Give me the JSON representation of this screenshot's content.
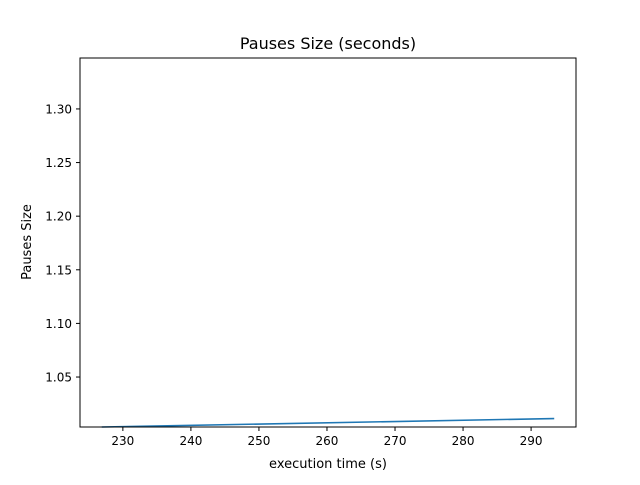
{
  "chart_data": {
    "type": "line",
    "title": "Pauses Size (seconds)",
    "xlabel": "execution time (s)",
    "ylabel": "Pauses Size",
    "xlim": [
      223.7,
      296.6
    ],
    "ylim": [
      1.0034,
      1.3475
    ],
    "x_ticks": [
      230,
      240,
      250,
      260,
      270,
      280,
      290
    ],
    "y_ticks": [
      1.05,
      1.1,
      1.15,
      1.2,
      1.25,
      1.3
    ],
    "x_tick_labels": [
      "230",
      "240",
      "250",
      "260",
      "270",
      "280",
      "290"
    ],
    "y_tick_labels": [
      "1.05",
      "1.10",
      "1.15",
      "1.20",
      "1.25",
      "1.30"
    ],
    "grid": false,
    "series": [
      {
        "color": "#1f77b4",
        "x": [
          226.9,
          293.4
        ],
        "y": [
          1.0034,
          1.0113
        ]
      }
    ]
  }
}
